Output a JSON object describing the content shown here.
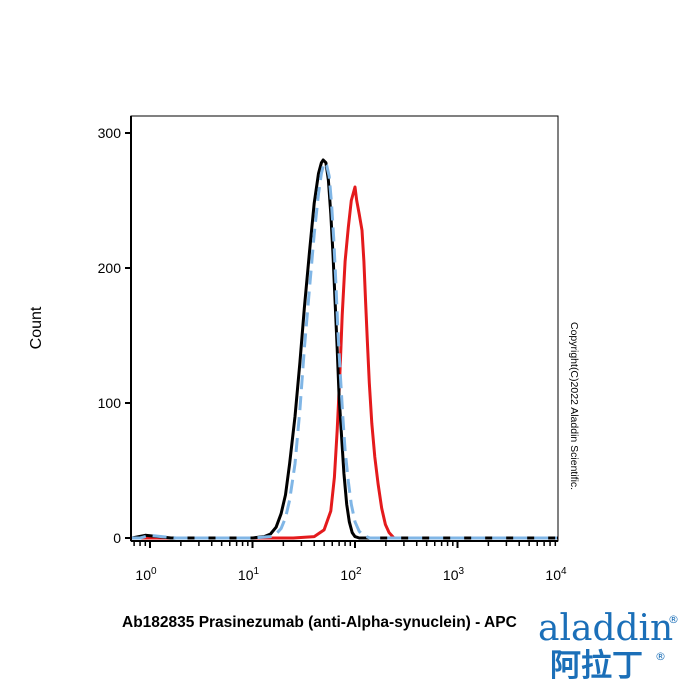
{
  "chart_data": {
    "type": "line",
    "title": "",
    "xlabel": "Ab182835 Prasinezumab (anti-Alpha-synuclein) - APC",
    "ylabel": "Count",
    "x_scale": "log",
    "xlim": [
      0.5,
      10000
    ],
    "ylim": [
      0,
      300
    ],
    "y_ticks": [
      0,
      100,
      200,
      300
    ],
    "x_ticks": [
      {
        "value": 1,
        "base": "10",
        "exp": "0"
      },
      {
        "value": 10,
        "base": "10",
        "exp": "1"
      },
      {
        "value": 100,
        "base": "10",
        "exp": "2"
      },
      {
        "value": 1000,
        "base": "10",
        "exp": "3"
      },
      {
        "value": 10000,
        "base": "10",
        "exp": "4"
      }
    ],
    "grid": false,
    "legend": "none",
    "series": [
      {
        "color": "#e41a1c",
        "style": "solid",
        "points": [
          [
            0.6,
            0
          ],
          [
            1,
            0
          ],
          [
            10,
            0
          ],
          [
            25,
            0
          ],
          [
            40,
            1
          ],
          [
            50,
            6
          ],
          [
            58,
            20
          ],
          [
            63,
            45
          ],
          [
            67,
            80
          ],
          [
            71,
            120
          ],
          [
            75,
            165
          ],
          [
            80,
            205
          ],
          [
            86,
            230
          ],
          [
            92,
            250
          ],
          [
            100,
            260
          ],
          [
            104,
            250
          ],
          [
            110,
            240
          ],
          [
            117,
            228
          ],
          [
            122,
            205
          ],
          [
            127,
            175
          ],
          [
            132,
            145
          ],
          [
            138,
            115
          ],
          [
            146,
            85
          ],
          [
            156,
            60
          ],
          [
            168,
            40
          ],
          [
            182,
            22
          ],
          [
            198,
            10
          ],
          [
            215,
            4
          ],
          [
            240,
            0
          ],
          [
            1000,
            0
          ],
          [
            10000,
            0
          ]
        ]
      },
      {
        "color": "#000000",
        "style": "solid",
        "points": [
          [
            0.6,
            0
          ],
          [
            0.9,
            2
          ],
          [
            1.2,
            1
          ],
          [
            1.6,
            0
          ],
          [
            5,
            0
          ],
          [
            10,
            0
          ],
          [
            13,
            1
          ],
          [
            15,
            3
          ],
          [
            17,
            8
          ],
          [
            19,
            18
          ],
          [
            21,
            32
          ],
          [
            23,
            55
          ],
          [
            26,
            90
          ],
          [
            29,
            130
          ],
          [
            32,
            170
          ],
          [
            36,
            212
          ],
          [
            40,
            248
          ],
          [
            44,
            270
          ],
          [
            47,
            278
          ],
          [
            49,
            280
          ],
          [
            52,
            278
          ],
          [
            55,
            265
          ],
          [
            58,
            240
          ],
          [
            61,
            210
          ],
          [
            64,
            175
          ],
          [
            67,
            140
          ],
          [
            70,
            105
          ],
          [
            74,
            75
          ],
          [
            78,
            48
          ],
          [
            83,
            25
          ],
          [
            88,
            12
          ],
          [
            94,
            4
          ],
          [
            100,
            1
          ],
          [
            110,
            0
          ],
          [
            1000,
            0
          ],
          [
            10000,
            0
          ]
        ]
      },
      {
        "color": "#80b6e6",
        "style": "dashed",
        "points": [
          [
            0.6,
            0
          ],
          [
            0.8,
            0
          ],
          [
            1,
            2
          ],
          [
            1.3,
            1
          ],
          [
            1.8,
            0
          ],
          [
            10,
            0
          ],
          [
            15,
            1
          ],
          [
            17,
            3
          ],
          [
            19,
            7
          ],
          [
            21,
            15
          ],
          [
            23,
            28
          ],
          [
            26,
            55
          ],
          [
            29,
            95
          ],
          [
            32,
            140
          ],
          [
            36,
            185
          ],
          [
            40,
            225
          ],
          [
            44,
            255
          ],
          [
            47,
            270
          ],
          [
            50,
            278
          ],
          [
            53,
            276
          ],
          [
            56,
            268
          ],
          [
            59,
            248
          ],
          [
            62,
            222
          ],
          [
            65,
            190
          ],
          [
            68,
            155
          ],
          [
            72,
            120
          ],
          [
            76,
            90
          ],
          [
            80,
            65
          ],
          [
            86,
            42
          ],
          [
            92,
            25
          ],
          [
            100,
            12
          ],
          [
            110,
            5
          ],
          [
            120,
            2
          ],
          [
            140,
            0
          ],
          [
            1000,
            0
          ],
          [
            10000,
            0
          ]
        ]
      }
    ]
  },
  "copyright": "Copyright(C)2022 Aladdin Scientific.",
  "logo": {
    "brand_latin": "aladdin",
    "brand_chinese": "阿拉丁",
    "registered": "®",
    "color": "#1b6fb8"
  }
}
